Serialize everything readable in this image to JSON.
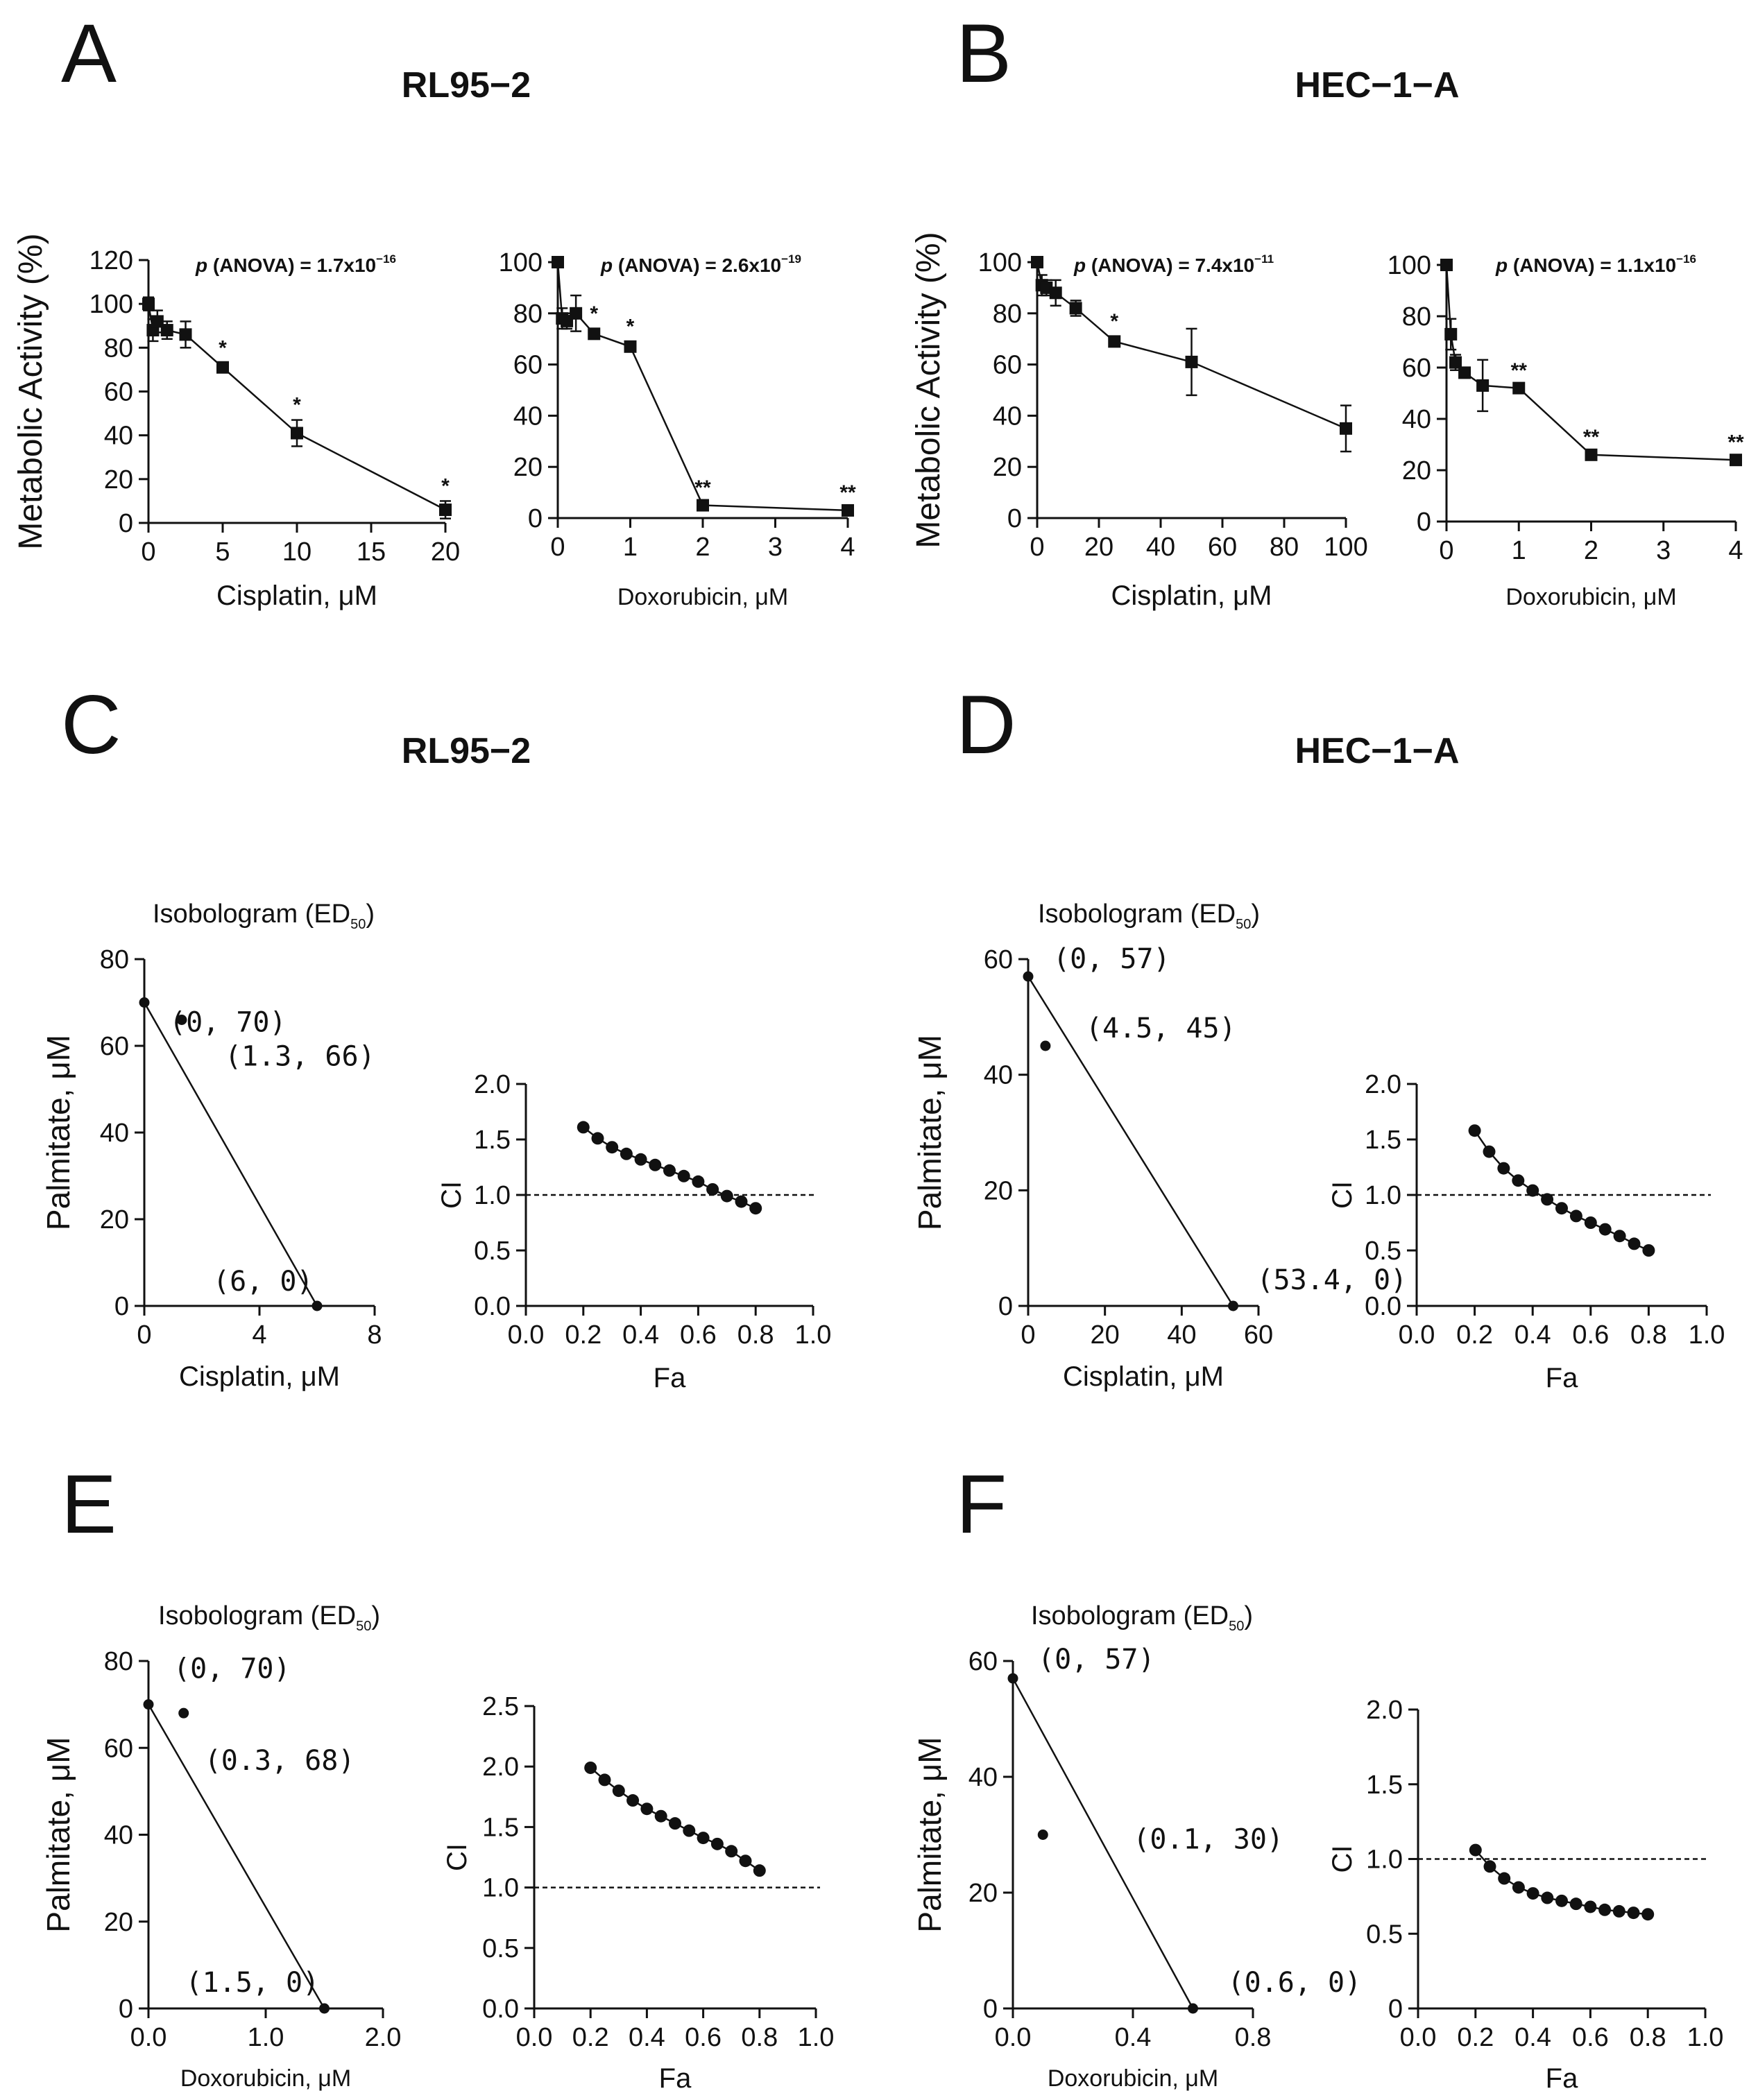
{
  "panels": {
    "A": {
      "letter": "A",
      "cell": "RL95−2"
    },
    "B": {
      "letter": "B",
      "cell": "HEC−1−A"
    },
    "C": {
      "letter": "C",
      "cell": "RL95−2"
    },
    "D": {
      "letter": "D",
      "cell": "HEC−1−A"
    },
    "E": {
      "letter": "E"
    },
    "F": {
      "letter": "F"
    }
  },
  "chart_data": [
    {
      "id": "A1",
      "panel": "A",
      "type": "line",
      "markers": "square",
      "error_bars": true,
      "xlabel": "Cisplatin, μM",
      "ylabel": "Metabolic Activity (%)",
      "xlim": [
        0,
        20
      ],
      "ylim": [
        0,
        120
      ],
      "xticks": [
        0,
        5,
        10,
        15,
        20
      ],
      "yticks": [
        0,
        20,
        40,
        60,
        80,
        100,
        120
      ],
      "pvalue": {
        "prefix": "p",
        "text": " (ANOVA) = 1.7x10",
        "exp": "−16"
      },
      "x": [
        0,
        0.3,
        0.6,
        1.25,
        2.5,
        5,
        10,
        20
      ],
      "y": [
        100,
        88,
        92,
        88,
        86,
        71,
        41,
        6
      ],
      "err": [
        3,
        5,
        5,
        4,
        6,
        2,
        6,
        4
      ],
      "marks": [
        "",
        "",
        "",
        "",
        "",
        "*",
        "*",
        "*"
      ]
    },
    {
      "id": "A2",
      "panel": "A",
      "type": "line",
      "markers": "square",
      "error_bars": true,
      "xlabel": "Doxorubicin, μM",
      "ylabel": "",
      "xlim": [
        0,
        4
      ],
      "ylim": [
        0,
        100
      ],
      "xticks": [
        0,
        1,
        2,
        3,
        4
      ],
      "yticks": [
        0,
        20,
        40,
        60,
        80,
        100
      ],
      "pvalue": {
        "prefix": "p",
        "text": " (ANOVA) = 2.6x10",
        "exp": "−19"
      },
      "x": [
        0,
        0.06,
        0.125,
        0.25,
        0.5,
        1,
        2,
        4
      ],
      "y": [
        100,
        78,
        77,
        80,
        72,
        67,
        5,
        3
      ],
      "err": [
        0,
        4,
        3,
        7,
        2,
        2,
        1,
        1
      ],
      "marks": [
        "",
        "",
        "",
        "",
        "*",
        "*",
        "**",
        "**"
      ]
    },
    {
      "id": "B1",
      "panel": "B",
      "type": "line",
      "markers": "square",
      "error_bars": true,
      "xlabel": "Cisplatin, μM",
      "ylabel": "Metabolic Activity (%)",
      "xlim": [
        0,
        100
      ],
      "ylim": [
        0,
        100
      ],
      "xticks": [
        0,
        20,
        40,
        60,
        80,
        100
      ],
      "yticks": [
        0,
        20,
        40,
        60,
        80,
        100
      ],
      "pvalue": {
        "prefix": "p",
        "text": " (ANOVA) = 7.4x10",
        "exp": "−11"
      },
      "x": [
        0,
        1.5,
        3,
        6,
        12.5,
        25,
        50,
        100
      ],
      "y": [
        100,
        91,
        90,
        88,
        82,
        69,
        61,
        35
      ],
      "err": [
        0,
        4,
        3,
        5,
        3,
        2,
        13,
        9
      ],
      "marks": [
        "",
        "",
        "",
        "",
        "",
        "*",
        "",
        ""
      ]
    },
    {
      "id": "B2",
      "panel": "B",
      "type": "line",
      "markers": "square",
      "error_bars": true,
      "xlabel": "Doxorubicin, μM",
      "ylabel": "",
      "xlim": [
        0,
        4
      ],
      "ylim": [
        0,
        100
      ],
      "xticks": [
        0,
        1,
        2,
        3,
        4
      ],
      "yticks": [
        0,
        20,
        40,
        60,
        80,
        100
      ],
      "pvalue": {
        "prefix": "p",
        "text": " (ANOVA) = 1.1x10",
        "exp": "−16"
      },
      "x": [
        0,
        0.06,
        0.125,
        0.25,
        0.5,
        1,
        2,
        4
      ],
      "y": [
        100,
        73,
        62,
        58,
        53,
        52,
        26,
        24
      ],
      "err": [
        0,
        6,
        3,
        2,
        10,
        1,
        1,
        1
      ],
      "marks": [
        "",
        "",
        "",
        "",
        "",
        "**",
        "**",
        "**"
      ]
    },
    {
      "id": "C1",
      "panel": "C",
      "type": "scatter",
      "kind": "isobologram",
      "title": "Isobologram (ED",
      "title_sub": "50",
      "title_end": ")",
      "xlabel": "Cisplatin, μM",
      "ylabel": "Palmitate, μM",
      "xlim": [
        0,
        8
      ],
      "ylim": [
        0,
        80
      ],
      "xticks": [
        0,
        4,
        8
      ],
      "yticks": [
        0,
        20,
        40,
        60,
        80
      ],
      "line": [
        [
          0,
          70
        ],
        [
          6,
          0
        ]
      ],
      "points": [
        {
          "x": 0,
          "y": 70,
          "label": "(0, 70)"
        },
        {
          "x": 1.3,
          "y": 66,
          "label": "(1.3, 66)"
        },
        {
          "x": 6,
          "y": 0,
          "label": "(6, 0)"
        }
      ]
    },
    {
      "id": "C2",
      "panel": "C",
      "type": "line",
      "kind": "ci",
      "xlabel": "Fa",
      "ylabel": "CI",
      "xlim": [
        0,
        1
      ],
      "ylim": [
        0,
        2
      ],
      "xticks": [
        0,
        0.2,
        0.4,
        0.6,
        0.8,
        1.0
      ],
      "xtick_labels": [
        "0.0",
        "0.2",
        "0.4",
        "0.6",
        "0.8",
        "1.0"
      ],
      "yticks": [
        0,
        0.5,
        1.0,
        1.5,
        2.0
      ],
      "ytick_labels": [
        "0.0",
        "0.5",
        "1.0",
        "1.5",
        "2.0"
      ],
      "reference_line": 1.0,
      "x": [
        0.2,
        0.25,
        0.3,
        0.35,
        0.4,
        0.45,
        0.5,
        0.55,
        0.6,
        0.65,
        0.7,
        0.75,
        0.8
      ],
      "y": [
        1.61,
        1.51,
        1.43,
        1.37,
        1.32,
        1.27,
        1.22,
        1.17,
        1.12,
        1.05,
        0.99,
        0.94,
        0.88
      ]
    },
    {
      "id": "D1",
      "panel": "D",
      "type": "scatter",
      "kind": "isobologram",
      "title": "Isobologram (ED",
      "title_sub": "50",
      "title_end": ")",
      "xlabel": "Cisplatin, μM",
      "ylabel": "Palmitate, μM",
      "xlim": [
        0,
        60
      ],
      "ylim": [
        0,
        60
      ],
      "xticks": [
        0,
        20,
        40,
        60
      ],
      "yticks": [
        0,
        20,
        40,
        60
      ],
      "line": [
        [
          0,
          57
        ],
        [
          53.4,
          0
        ]
      ],
      "points": [
        {
          "x": 0,
          "y": 57,
          "label": "(0, 57)"
        },
        {
          "x": 4.5,
          "y": 45,
          "label": "(4.5, 45)"
        },
        {
          "x": 53.4,
          "y": 0,
          "label": "(53.4, 0)"
        }
      ]
    },
    {
      "id": "D2",
      "panel": "D",
      "type": "line",
      "kind": "ci",
      "xlabel": "Fa",
      "ylabel": "CI",
      "xlim": [
        0,
        1
      ],
      "ylim": [
        0,
        2
      ],
      "xticks": [
        0,
        0.2,
        0.4,
        0.6,
        0.8,
        1.0
      ],
      "xtick_labels": [
        "0.0",
        "0.2",
        "0.4",
        "0.6",
        "0.8",
        "1.0"
      ],
      "yticks": [
        0,
        0.5,
        1.0,
        1.5,
        2.0
      ],
      "ytick_labels": [
        "0.0",
        "0.5",
        "1.0",
        "1.5",
        "2.0"
      ],
      "reference_line": 1.0,
      "x": [
        0.2,
        0.25,
        0.3,
        0.35,
        0.4,
        0.45,
        0.5,
        0.55,
        0.6,
        0.65,
        0.7,
        0.75,
        0.8
      ],
      "y": [
        1.58,
        1.39,
        1.24,
        1.13,
        1.04,
        0.96,
        0.88,
        0.81,
        0.75,
        0.69,
        0.63,
        0.56,
        0.5
      ]
    },
    {
      "id": "E1",
      "panel": "E",
      "type": "scatter",
      "kind": "isobologram",
      "title": "Isobologram (ED",
      "title_sub": "50",
      "title_end": ")",
      "xlabel": "Doxorubicin, μM",
      "ylabel": "Palmitate, μM",
      "xlim": [
        0,
        2
      ],
      "ylim": [
        0,
        80
      ],
      "xticks": [
        0,
        1,
        2
      ],
      "xtick_labels": [
        "0.0",
        "1.0",
        "2.0"
      ],
      "yticks": [
        0,
        20,
        40,
        60,
        80
      ],
      "line": [
        [
          0,
          70
        ],
        [
          1.5,
          0
        ]
      ],
      "points": [
        {
          "x": 0,
          "y": 70,
          "label": "(0, 70)"
        },
        {
          "x": 0.3,
          "y": 68,
          "label": "(0.3, 68)"
        },
        {
          "x": 1.5,
          "y": 0,
          "label": "(1.5, 0)"
        }
      ]
    },
    {
      "id": "E2",
      "panel": "E",
      "type": "line",
      "kind": "ci",
      "xlabel": "Fa",
      "ylabel": "CI",
      "xlim": [
        0,
        1
      ],
      "ylim": [
        0,
        2.5
      ],
      "xticks": [
        0,
        0.2,
        0.4,
        0.6,
        0.8,
        1.0
      ],
      "xtick_labels": [
        "0.0",
        "0.2",
        "0.4",
        "0.6",
        "0.8",
        "1.0"
      ],
      "yticks": [
        0,
        0.5,
        1.0,
        1.5,
        2.0,
        2.5
      ],
      "ytick_labels": [
        "0.0",
        "0.5",
        "1.0",
        "1.5",
        "2.0",
        "2.5"
      ],
      "reference_line": 1.0,
      "x": [
        0.2,
        0.25,
        0.3,
        0.35,
        0.4,
        0.45,
        0.5,
        0.55,
        0.6,
        0.65,
        0.7,
        0.75,
        0.8
      ],
      "y": [
        1.99,
        1.89,
        1.8,
        1.72,
        1.65,
        1.59,
        1.53,
        1.47,
        1.41,
        1.36,
        1.3,
        1.22,
        1.14
      ]
    },
    {
      "id": "F1",
      "panel": "F",
      "type": "scatter",
      "kind": "isobologram",
      "title": "Isobologram (ED",
      "title_sub": "50",
      "title_end": ")",
      "xlabel": "Doxorubicin, μM",
      "ylabel": "Palmitate, μM",
      "xlim": [
        0,
        0.8
      ],
      "ylim": [
        0,
        60
      ],
      "xticks": [
        0,
        0.4,
        0.8
      ],
      "xtick_labels": [
        "0.0",
        "0.4",
        "0.8"
      ],
      "yticks": [
        0,
        20,
        40,
        60
      ],
      "line": [
        [
          0,
          57
        ],
        [
          0.6,
          0
        ]
      ],
      "points": [
        {
          "x": 0,
          "y": 57,
          "label": "(0, 57)"
        },
        {
          "x": 0.1,
          "y": 30,
          "label": "(0.1, 30)"
        },
        {
          "x": 0.6,
          "y": 0,
          "label": "(0.6, 0)"
        }
      ]
    },
    {
      "id": "F2",
      "panel": "F",
      "type": "line",
      "kind": "ci",
      "xlabel": "Fa",
      "ylabel": "CI",
      "xlim": [
        0,
        1
      ],
      "ylim": [
        0,
        2
      ],
      "xticks": [
        0,
        0.2,
        0.4,
        0.6,
        0.8,
        1.0
      ],
      "xtick_labels": [
        "0.0",
        "0.2",
        "0.4",
        "0.6",
        "0.8",
        "1.0"
      ],
      "yticks": [
        0,
        0.5,
        1.0,
        1.5,
        2.0
      ],
      "ytick_labels": [
        "0",
        "0.5",
        "1.0",
        "1.5",
        "2.0"
      ],
      "reference_line": 1.0,
      "x": [
        0.2,
        0.25,
        0.3,
        0.35,
        0.4,
        0.45,
        0.5,
        0.55,
        0.6,
        0.65,
        0.7,
        0.75,
        0.8
      ],
      "y": [
        1.06,
        0.95,
        0.87,
        0.81,
        0.77,
        0.74,
        0.72,
        0.7,
        0.68,
        0.66,
        0.65,
        0.64,
        0.63
      ]
    }
  ]
}
